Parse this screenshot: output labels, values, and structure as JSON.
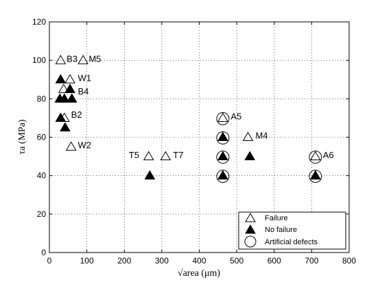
{
  "chart_data": {
    "type": "scatter",
    "xlabel": "√area (μm)",
    "ylabel": "τa (MPa)",
    "xlim": [
      0,
      800
    ],
    "ylim": [
      0,
      120
    ],
    "xticks": [
      0,
      100,
      200,
      300,
      400,
      500,
      600,
      700,
      800
    ],
    "yticks": [
      0,
      20,
      40,
      60,
      80,
      100,
      120
    ],
    "grid": true,
    "legend_position": "bottom-right",
    "series": [
      {
        "name": "Failure",
        "marker": "open-triangle",
        "points": [
          {
            "x": 30,
            "y": 100
          },
          {
            "x": 90,
            "y": 100
          },
          {
            "x": 55,
            "y": 90
          },
          {
            "x": 38,
            "y": 85
          },
          {
            "x": 40,
            "y": 70
          },
          {
            "x": 58,
            "y": 55
          },
          {
            "x": 265,
            "y": 50
          },
          {
            "x": 310,
            "y": 50
          },
          {
            "x": 463,
            "y": 70
          },
          {
            "x": 530,
            "y": 60
          },
          {
            "x": 710,
            "y": 50
          }
        ]
      },
      {
        "name": "No failure",
        "marker": "filled-triangle",
        "points": [
          {
            "x": 30,
            "y": 90
          },
          {
            "x": 55,
            "y": 85
          },
          {
            "x": 28,
            "y": 80
          },
          {
            "x": 40,
            "y": 80
          },
          {
            "x": 60,
            "y": 80
          },
          {
            "x": 30,
            "y": 70
          },
          {
            "x": 42,
            "y": 65
          },
          {
            "x": 268,
            "y": 40
          },
          {
            "x": 463,
            "y": 60
          },
          {
            "x": 463,
            "y": 50
          },
          {
            "x": 463,
            "y": 40
          },
          {
            "x": 535,
            "y": 50
          },
          {
            "x": 710,
            "y": 40
          }
        ]
      },
      {
        "name": "Artificial defects",
        "marker": "open-circle",
        "points": [
          {
            "x": 463,
            "y": 70
          },
          {
            "x": 463,
            "y": 60
          },
          {
            "x": 463,
            "y": 50
          },
          {
            "x": 463,
            "y": 40
          },
          {
            "x": 710,
            "y": 50
          },
          {
            "x": 710,
            "y": 40
          }
        ]
      }
    ],
    "annotations": [
      {
        "text": "B3",
        "x": 46,
        "y": 101
      },
      {
        "text": "M5",
        "x": 105,
        "y": 101
      },
      {
        "text": "W1",
        "x": 76,
        "y": 91
      },
      {
        "text": "B4",
        "x": 76,
        "y": 84
      },
      {
        "text": "B2",
        "x": 58,
        "y": 72
      },
      {
        "text": "W2",
        "x": 76,
        "y": 56
      },
      {
        "text": "T5",
        "x": 212,
        "y": 51
      },
      {
        "text": "T7",
        "x": 330,
        "y": 51
      },
      {
        "text": "A5",
        "x": 484,
        "y": 71
      },
      {
        "text": "M4",
        "x": 550,
        "y": 61
      },
      {
        "text": "A6",
        "x": 730,
        "y": 51
      }
    ]
  }
}
